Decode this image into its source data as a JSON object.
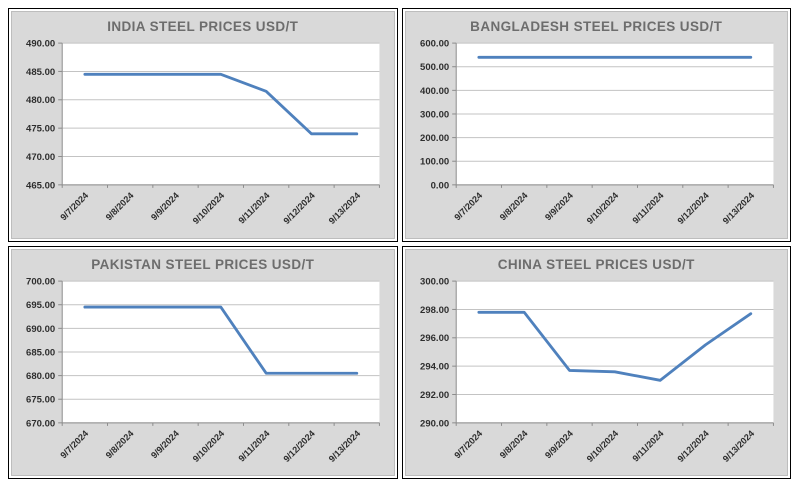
{
  "colors": {
    "line": "#4F81BD",
    "panel_bg": "#D9D9D9",
    "plot_bg": "#FFFFFF",
    "grid": "#C3C3C3",
    "axis": "#8C8C8C",
    "title": "#6D6D6D",
    "tick_text": "#2E2E2E"
  },
  "chart_data": [
    {
      "type": "line",
      "title": "INDIA STEEL PRICES USD/T",
      "categories": [
        "9/7/2024",
        "9/8/2024",
        "9/9/2024",
        "9/10/2024",
        "9/11/2024",
        "9/12/2024",
        "9/13/2024"
      ],
      "values": [
        484.5,
        484.5,
        484.5,
        484.5,
        481.5,
        474.0,
        474.0
      ],
      "xlabel": "",
      "ylabel": "",
      "ylim": [
        465,
        490
      ],
      "ytick_step": 5,
      "grid": true,
      "legend": false
    },
    {
      "type": "line",
      "title": "BANGLADESH STEEL PRICES USD/T",
      "categories": [
        "9/7/2024",
        "9/8/2024",
        "9/9/2024",
        "9/10/2024",
        "9/11/2024",
        "9/12/2024",
        "9/13/2024"
      ],
      "values": [
        540,
        540,
        540,
        540,
        540,
        540,
        540
      ],
      "xlabel": "",
      "ylabel": "",
      "ylim": [
        0,
        600
      ],
      "ytick_step": 100,
      "grid": true,
      "legend": false
    },
    {
      "type": "line",
      "title": "PAKISTAN STEEL PRICES USD/T",
      "categories": [
        "9/7/2024",
        "9/8/2024",
        "9/9/2024",
        "9/10/2024",
        "9/11/2024",
        "9/12/2024",
        "9/13/2024"
      ],
      "values": [
        694.5,
        694.5,
        694.5,
        694.5,
        680.5,
        680.5,
        680.5
      ],
      "xlabel": "",
      "ylabel": "",
      "ylim": [
        670,
        700
      ],
      "ytick_step": 5,
      "grid": true,
      "legend": false
    },
    {
      "type": "line",
      "title": "CHINA STEEL PRICES USD/T",
      "categories": [
        "9/7/2024",
        "9/8/2024",
        "9/9/2024",
        "9/10/2024",
        "9/11/2024",
        "9/12/2024",
        "9/13/2024"
      ],
      "values": [
        297.8,
        297.8,
        293.7,
        293.6,
        293.0,
        295.5,
        297.7
      ],
      "xlabel": "",
      "ylabel": "",
      "ylim": [
        290,
        300
      ],
      "ytick_step": 2,
      "grid": true,
      "legend": false
    }
  ]
}
